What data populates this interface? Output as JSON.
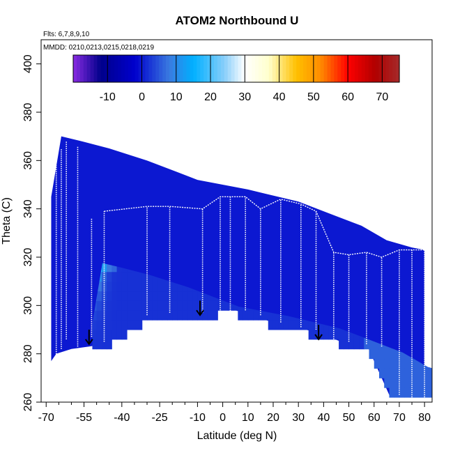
{
  "chart_data": {
    "type": "heatmap",
    "title": "ATOM2 Northbound U",
    "annotations": {
      "flights": "Flts: 6,7,8,9,10",
      "dates": "MMDD: 0210,0213,0215,0218,0219"
    },
    "xlabel": "Latitude (deg N)",
    "ylabel": "Theta (C)",
    "xlim": [
      -72,
      83
    ],
    "ylim": [
      260,
      410
    ],
    "x_ticks": [
      -70,
      -55,
      -40,
      -25,
      -10,
      0,
      10,
      20,
      30,
      40,
      50,
      60,
      70,
      80
    ],
    "x_tick_labels": [
      "-70",
      "-55",
      "-40",
      "-25",
      "-10",
      "0",
      "10",
      "20",
      "30",
      "40",
      "50",
      "60",
      "70",
      "80"
    ],
    "y_ticks": [
      260,
      280,
      300,
      320,
      340,
      360,
      380,
      400
    ],
    "y_tick_labels": [
      "260",
      "280",
      "300",
      "320",
      "340",
      "360",
      "380",
      "400"
    ],
    "colorbar": {
      "min": -20,
      "max": 75,
      "ticks": [
        -10,
        0,
        10,
        20,
        30,
        40,
        50,
        60,
        70
      ],
      "tick_labels": [
        "-10",
        "0",
        "10",
        "20",
        "30",
        "40",
        "50",
        "60",
        "70"
      ],
      "stops": [
        {
          "value": -20,
          "color": "#8a2be2"
        },
        {
          "value": -12,
          "color": "#00008b"
        },
        {
          "value": -2,
          "color": "#0000cd"
        },
        {
          "value": 8,
          "color": "#3a7ae0"
        },
        {
          "value": 15,
          "color": "#00b0ff"
        },
        {
          "value": 24,
          "color": "#87cefa"
        },
        {
          "value": 30,
          "color": "#ffffff"
        },
        {
          "value": 37,
          "color": "#ffffcc"
        },
        {
          "value": 45,
          "color": "#ffc000"
        },
        {
          "value": 52,
          "color": "#ff8c00"
        },
        {
          "value": 60,
          "color": "#ff0000"
        },
        {
          "value": 68,
          "color": "#b00000"
        },
        {
          "value": 75,
          "color": "#a52a2a"
        }
      ]
    },
    "tropopause_arrows": [
      {
        "lat": -53,
        "theta": 290
      },
      {
        "lat": -9,
        "theta": 302
      },
      {
        "lat": 38,
        "theta": 292
      }
    ],
    "bottom_boundary": [
      {
        "lat": -68,
        "theta": 277
      },
      {
        "lat": -66,
        "theta": 280
      },
      {
        "lat": -60,
        "theta": 282
      },
      {
        "lat": -53,
        "theta": 283
      },
      {
        "lat": -47,
        "theta": 284
      },
      {
        "lat": -31,
        "theta": 296
      },
      {
        "lat": -10,
        "theta": 297
      },
      {
        "lat": 2,
        "theta": 299
      },
      {
        "lat": 20,
        "theta": 293
      },
      {
        "lat": 37,
        "theta": 289
      },
      {
        "lat": 47,
        "theta": 285
      },
      {
        "lat": 57,
        "theta": 284
      },
      {
        "lat": 66,
        "theta": 263
      },
      {
        "lat": 73,
        "theta": 262
      },
      {
        "lat": 80,
        "theta": 262
      }
    ],
    "top_boundary": [
      {
        "lat": -68,
        "theta": 345
      },
      {
        "lat": -64,
        "theta": 370
      },
      {
        "lat": -56,
        "theta": 368
      },
      {
        "lat": -45,
        "theta": 365
      },
      {
        "lat": -30,
        "theta": 360
      },
      {
        "lat": -10,
        "theta": 352
      },
      {
        "lat": 10,
        "theta": 348
      },
      {
        "lat": 30,
        "theta": 343
      },
      {
        "lat": 45,
        "theta": 337
      },
      {
        "lat": 55,
        "theta": 333
      },
      {
        "lat": 65,
        "theta": 327
      },
      {
        "lat": 75,
        "theta": 324
      },
      {
        "lat": 80,
        "theta": 323
      }
    ],
    "profile_sets": [
      {
        "lat": -66,
        "bottom": 279,
        "top": 358
      },
      {
        "lat": -64,
        "bottom": 282,
        "top": 365
      },
      {
        "lat": -62,
        "bottom": 286,
        "top": 368
      },
      {
        "lat": -57.5,
        "bottom": 283,
        "top": 366
      },
      {
        "lat": -52,
        "bottom": 287,
        "top": 336
      },
      {
        "lat": -47,
        "bottom": 285,
        "top": 339
      },
      {
        "lat": -30,
        "bottom": 296,
        "top": 341
      },
      {
        "lat": -21,
        "bottom": 297,
        "top": 341
      },
      {
        "lat": -8,
        "bottom": 297,
        "top": 340
      },
      {
        "lat": -1,
        "bottom": 298,
        "top": 345
      },
      {
        "lat": 3,
        "bottom": 297,
        "top": 345
      },
      {
        "lat": 9,
        "bottom": 298,
        "top": 345
      },
      {
        "lat": 15,
        "bottom": 296,
        "top": 340
      },
      {
        "lat": 23,
        "bottom": 293,
        "top": 344
      },
      {
        "lat": 31,
        "bottom": 291,
        "top": 342
      },
      {
        "lat": 37,
        "bottom": 290,
        "top": 339
      },
      {
        "lat": 44,
        "bottom": 286,
        "top": 322
      },
      {
        "lat": 50,
        "bottom": 285,
        "top": 321
      },
      {
        "lat": 57,
        "bottom": 284,
        "top": 322
      },
      {
        "lat": 63,
        "bottom": 283,
        "top": 320
      },
      {
        "lat": 70,
        "bottom": 263,
        "top": 323
      },
      {
        "lat": 75,
        "bottom": 262,
        "top": 323
      },
      {
        "lat": 80,
        "bottom": 262,
        "top": 323
      }
    ]
  }
}
